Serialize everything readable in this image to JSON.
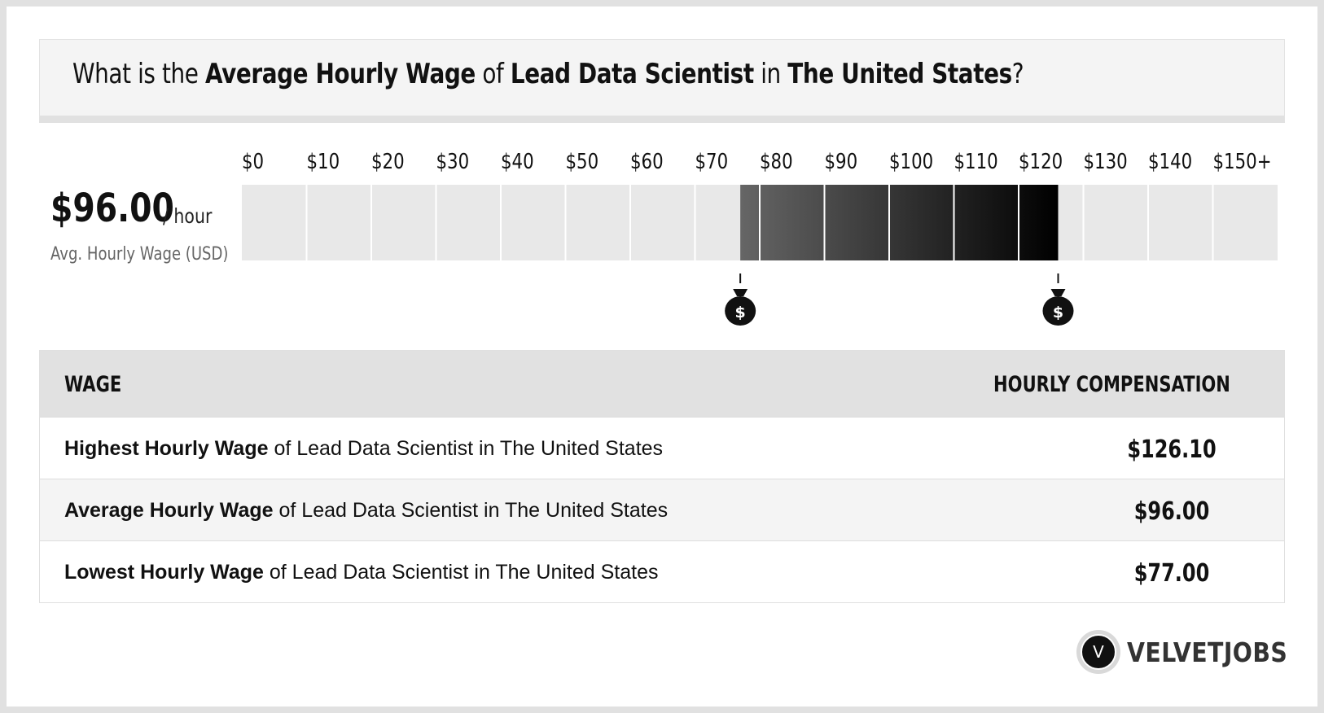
{
  "title": {
    "prefix": "What is the ",
    "metric": "Average Hourly Wage",
    "of": " of ",
    "job": "Lead Data Scientist",
    "in": " in ",
    "location": "The United States",
    "suffix": "?"
  },
  "summary": {
    "value": "$96.00",
    "unit": "/ hour",
    "label": "Avg. Hourly Wage (USD)"
  },
  "chart_data": {
    "type": "bar",
    "title": "",
    "tick_labels": [
      "$0",
      "$10",
      "$20",
      "$30",
      "$40",
      "$50",
      "$60",
      "$70",
      "$80",
      "$90",
      "$100",
      "$110",
      "$120",
      "$130",
      "$140",
      "$150+"
    ],
    "x_range": [
      0,
      150
    ],
    "low": 77.0,
    "high": 126.1,
    "average": 96.0,
    "colors": {
      "track": "#e8e8e8",
      "range_start": "#666666",
      "range_end": "#000000",
      "marker": "#111111"
    },
    "markers": [
      {
        "name": "low-marker",
        "value": 77.0,
        "icon": "money-bag-icon"
      },
      {
        "name": "high-marker",
        "value": 126.1,
        "icon": "money-bag-icon"
      }
    ]
  },
  "table": {
    "header_left": "WAGE",
    "header_right": "HOURLY COMPENSATION",
    "rows": [
      {
        "bold": "Highest Hourly Wage",
        "rest": " of Lead Data Scientist in The United States",
        "value": "$126.10"
      },
      {
        "bold": "Average Hourly Wage",
        "rest": " of Lead Data Scientist in The United States",
        "value": "$96.00"
      },
      {
        "bold": "Lowest Hourly Wage",
        "rest": " of Lead Data Scientist in The United States",
        "value": "$77.00"
      }
    ]
  },
  "brand": {
    "badge_letter": "V",
    "name": "VELVETJOBS",
    "icon": "velvetjobs-logo-icon"
  }
}
